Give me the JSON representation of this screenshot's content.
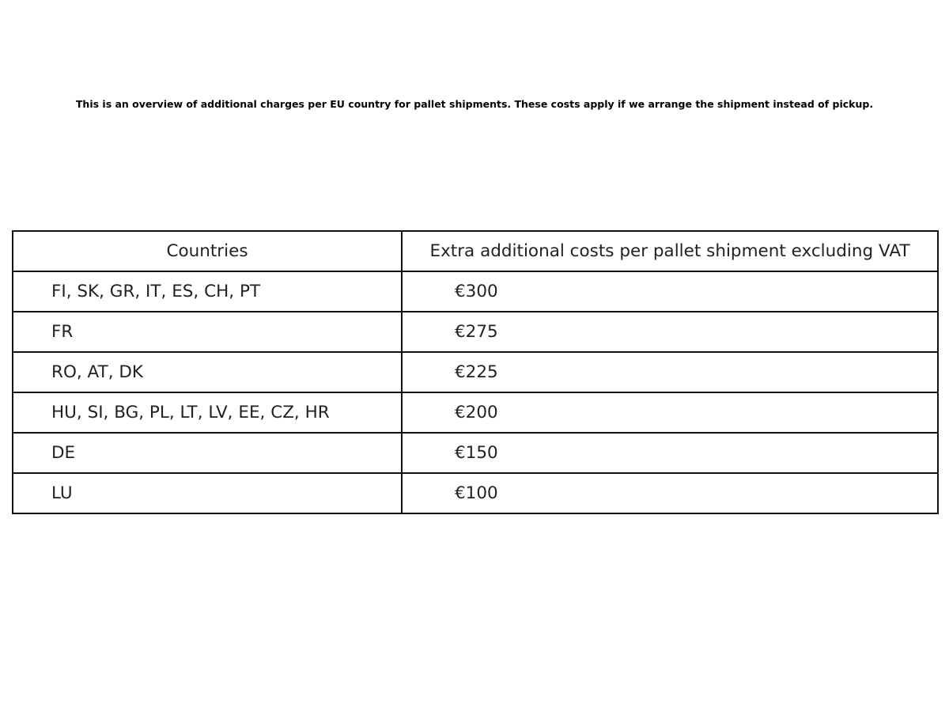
{
  "caption": "This is an overview of additional charges per EU country for pallet shipments. These costs apply if we arrange the shipment instead of pickup.",
  "table": {
    "headers": [
      "Countries",
      "Extra additional costs per pallet shipment excluding VAT"
    ],
    "rows": [
      [
        "FI, SK, GR, IT, ES, CH, PT",
        "€300"
      ],
      [
        "FR",
        "€275"
      ],
      [
        "RO, AT, DK",
        "€225"
      ],
      [
        "HU, SI, BG, PL, LT, LV, EE, CZ, HR",
        "€200"
      ],
      [
        "DE",
        "€150"
      ],
      [
        "LU",
        "€100"
      ]
    ]
  }
}
